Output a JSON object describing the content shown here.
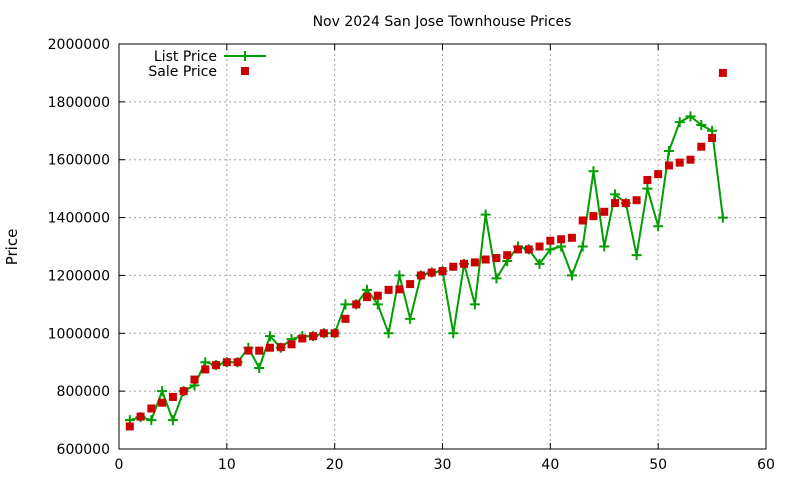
{
  "chart_data": {
    "type": "line",
    "title": "Nov 2024 San Jose Townhouse Prices",
    "xlabel": "",
    "ylabel": "Price",
    "xlim": [
      0,
      60
    ],
    "ylim": [
      600000,
      2000000
    ],
    "x_ticks": [
      0,
      10,
      20,
      30,
      40,
      50,
      60
    ],
    "y_ticks": [
      600000,
      800000,
      1000000,
      1200000,
      1400000,
      1600000,
      1800000,
      2000000
    ],
    "grid": true,
    "legend_position": "top-left",
    "series": [
      {
        "name": "List Price",
        "style": "line-with-plus-markers",
        "color": "#009e00",
        "x": [
          1,
          2,
          3,
          4,
          5,
          6,
          7,
          8,
          9,
          10,
          11,
          12,
          13,
          14,
          15,
          16,
          17,
          18,
          19,
          20,
          21,
          22,
          23,
          24,
          25,
          26,
          27,
          28,
          29,
          30,
          31,
          32,
          33,
          34,
          35,
          36,
          37,
          38,
          39,
          40,
          41,
          42,
          43,
          44,
          45,
          46,
          47,
          48,
          49,
          50,
          51,
          52,
          53,
          54,
          55,
          56
        ],
        "values": [
          700000,
          710000,
          700000,
          800000,
          700000,
          800000,
          820000,
          900000,
          890000,
          900000,
          900000,
          950000,
          880000,
          990000,
          950000,
          980000,
          990000,
          990000,
          1000000,
          1000000,
          1100000,
          1100000,
          1150000,
          1100000,
          1000000,
          1200000,
          1050000,
          1200000,
          1210000,
          1215000,
          1000000,
          1240000,
          1100000,
          1410000,
          1190000,
          1250000,
          1300000,
          1290000,
          1240000,
          1290000,
          1300000,
          1200000,
          1300000,
          1560000,
          1300000,
          1480000,
          1450000,
          1270000,
          1500000,
          1370000,
          1630000,
          1730000,
          1750000,
          1720000,
          1700000,
          1400000
        ]
      },
      {
        "name": "Sale Price",
        "style": "square-markers",
        "color": "#cc0000",
        "x": [
          1,
          2,
          3,
          4,
          5,
          6,
          7,
          8,
          9,
          10,
          11,
          12,
          13,
          14,
          15,
          16,
          17,
          18,
          19,
          20,
          21,
          22,
          23,
          24,
          25,
          26,
          27,
          28,
          29,
          30,
          31,
          32,
          33,
          34,
          35,
          36,
          37,
          38,
          39,
          40,
          41,
          42,
          43,
          44,
          45,
          46,
          47,
          48,
          49,
          50,
          51,
          52,
          53,
          54,
          55,
          56
        ],
        "values": [
          678000,
          712000,
          740000,
          760000,
          780000,
          800000,
          840000,
          875000,
          890000,
          900000,
          900000,
          940000,
          940000,
          950000,
          952000,
          962000,
          982000,
          990000,
          1000000,
          1000000,
          1050000,
          1100000,
          1125000,
          1130000,
          1150000,
          1152000,
          1170000,
          1200000,
          1210000,
          1215000,
          1230000,
          1240000,
          1245000,
          1255000,
          1260000,
          1270000,
          1290000,
          1290000,
          1300000,
          1320000,
          1325000,
          1330000,
          1390000,
          1405000,
          1420000,
          1450000,
          1450000,
          1460000,
          1530000,
          1550000,
          1580000,
          1590000,
          1600000,
          1645000,
          1675000,
          1900000
        ]
      }
    ]
  }
}
